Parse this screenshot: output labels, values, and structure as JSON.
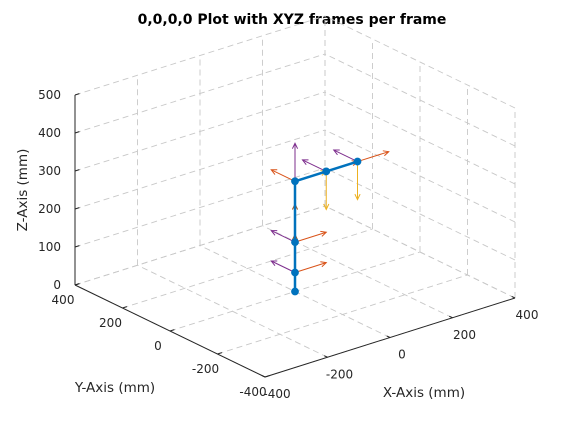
{
  "chart_data": {
    "type": "line3d",
    "title": "0,0,0,0 Plot with XYZ frames per frame",
    "xlabel": "X-Axis (mm)",
    "ylabel": "Y-Axis (mm)",
    "zlabel": "Z-Axis (mm)",
    "xlim": [
      -400,
      400
    ],
    "ylim": [
      -400,
      400
    ],
    "zlim": [
      0,
      500
    ],
    "x_ticks": [
      -400,
      -200,
      0,
      200,
      400
    ],
    "y_ticks": [
      -400,
      -200,
      0,
      200,
      400
    ],
    "z_ticks": [
      0,
      100,
      200,
      300,
      400,
      500
    ],
    "grid": true,
    "arm": {
      "color": "#0072BD",
      "points": [
        {
          "x": 0,
          "y": 0,
          "z": 0
        },
        {
          "x": 0,
          "y": 0,
          "z": 50
        },
        {
          "x": 0,
          "y": 0,
          "z": 130
        },
        {
          "x": 0,
          "y": 0,
          "z": 290
        },
        {
          "x": 100,
          "y": 0,
          "z": 290
        },
        {
          "x": 200,
          "y": 0,
          "z": 290
        }
      ]
    },
    "frame_colors": {
      "x_axis": "#D95319",
      "y_axis": "#7E2F8E",
      "z_axis": "#EDB120",
      "z_axis_up": "#A2531A"
    },
    "frames": [
      {
        "origin_index": 1,
        "x_dir": [
          1,
          0,
          0
        ],
        "y_dir": [
          0,
          1,
          0
        ],
        "z_dir": [
          0,
          0,
          1
        ]
      },
      {
        "origin_index": 2,
        "x_dir": [
          1,
          0,
          0
        ],
        "y_dir": [
          0,
          1,
          0
        ],
        "z_dir": [
          0,
          0,
          1
        ]
      },
      {
        "origin_index": 3,
        "x_dir": [
          0,
          1,
          0
        ],
        "y_dir": [
          0,
          0,
          1
        ],
        "z_dir": [
          1,
          0,
          0
        ]
      },
      {
        "origin_index": 4,
        "x_dir": [
          1,
          0,
          0
        ],
        "y_dir": [
          0,
          1,
          0
        ],
        "z_dir": [
          0,
          0,
          -1
        ]
      },
      {
        "origin_index": 5,
        "x_dir": [
          1,
          0,
          0
        ],
        "y_dir": [
          0,
          1,
          0
        ],
        "z_dir": [
          0,
          0,
          -1
        ]
      }
    ],
    "frame_length": 100
  }
}
